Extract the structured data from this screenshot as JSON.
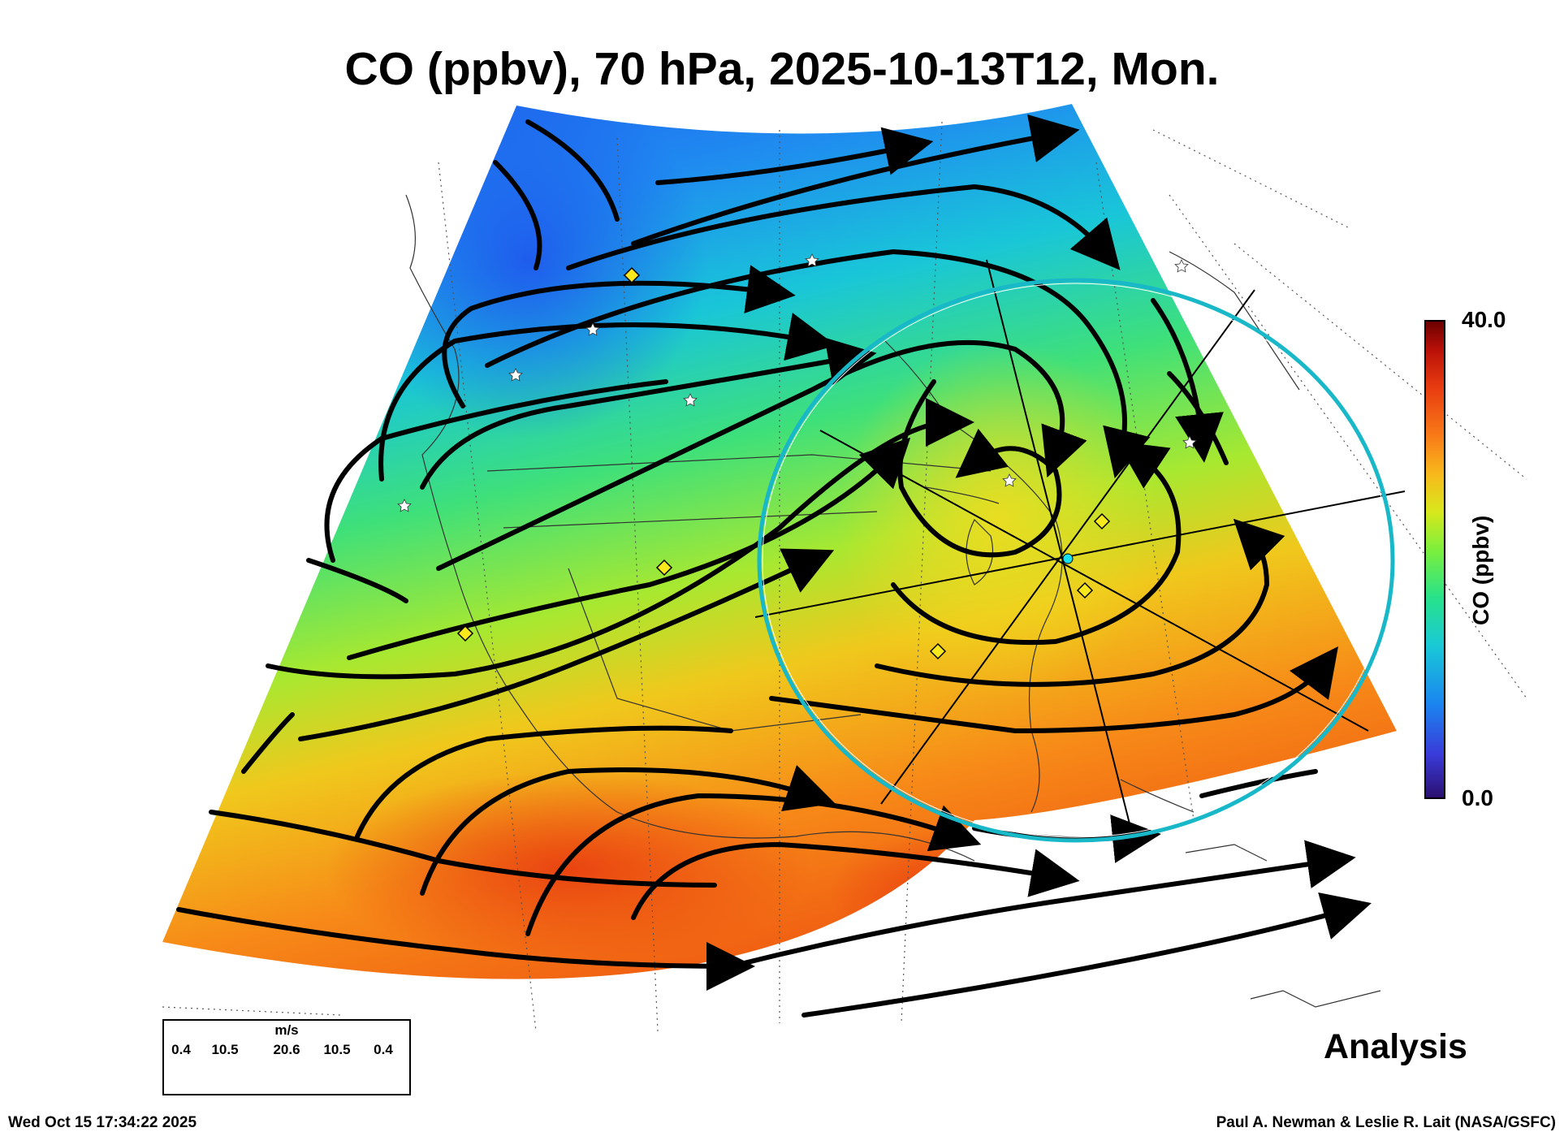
{
  "title": "CO (ppbv), 70 hPa, 2025-10-13T12, Mon.",
  "analysis_label": "Analysis",
  "timestamp": "Wed Oct 15 17:34:22 2025",
  "credit": "Paul A. Newman & Leslie R. Lait (NASA/GSFC)",
  "colorbar": {
    "label": "CO (ppbv)",
    "max_label": "40.0",
    "min_label": "0.0",
    "colors": [
      "#2a0f6e",
      "#3a3ad8",
      "#1a86f0",
      "#19c9d6",
      "#27e28a",
      "#7cef3c",
      "#d8e81c",
      "#f8b81c",
      "#f87a18",
      "#e83c10",
      "#b81008",
      "#6a0000"
    ]
  },
  "wind_legend": {
    "units": "m/s",
    "values": [
      "0.4",
      "10.5",
      "20.6",
      "10.5",
      "0.4"
    ]
  },
  "field_colors": {
    "low": "#1f6fee",
    "mid_low": "#19c6d8",
    "mid": "#3ee07a",
    "mid_high": "#d8e41c",
    "high": "#f7a21c",
    "max": "#ec4810"
  },
  "markers": {
    "stations": "star-icon",
    "sites": "diamond-icon",
    "center": "cyan-point-icon",
    "range_ring_color": "#19b8c8"
  }
}
